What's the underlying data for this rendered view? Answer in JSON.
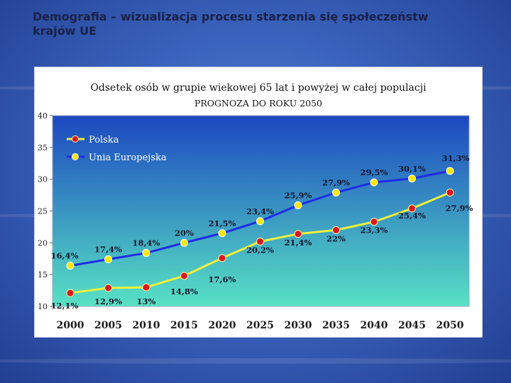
{
  "slide": {
    "title_line1": "Demografia – wizualizacja procesu starzenia się społeczeństw",
    "title_line2": "krajów UE"
  },
  "colors": {
    "polska_line": "#f2f03a",
    "polska_marker": "#e0141e",
    "ue_line": "#1f2ce6",
    "ue_marker": "#ffe800",
    "plot_top": "#1c47c0",
    "plot_bottom": "#58e2c4"
  },
  "chart_data": {
    "type": "line",
    "title": "Odsetek osób w grupie wiekowej 65 lat i powyżej w całej populacji",
    "subtitle": "PROGNOZA DO ROKU 2050",
    "x": [
      "2000",
      "2005",
      "2010",
      "2015",
      "2020",
      "2025",
      "2030",
      "2035",
      "2040",
      "2045",
      "2050"
    ],
    "ylim": [
      10,
      40
    ],
    "yticks": [
      "10",
      "15",
      "20",
      "25",
      "30",
      "35",
      "40"
    ],
    "grid": false,
    "legend_position": "top-left",
    "series": [
      {
        "name": "Polska",
        "values": [
          12.1,
          12.9,
          13.0,
          14.8,
          17.6,
          20.2,
          21.4,
          22.0,
          23.3,
          25.4,
          27.9
        ],
        "labels": [
          "12,1%",
          "12,9%",
          "13%",
          "14,8%",
          "17,6%",
          "20,2%",
          "21,4%",
          "22%",
          "23,3%",
          "25,4%",
          "27,9%"
        ]
      },
      {
        "name": "Unia Europejska",
        "values": [
          16.4,
          17.4,
          18.4,
          20.0,
          21.5,
          23.4,
          25.9,
          27.9,
          29.5,
          30.1,
          31.3
        ],
        "labels": [
          "16,4%",
          "17,4%",
          "18,4%",
          "20%",
          "21,5%",
          "23,4%",
          "25,9%",
          "27,9%",
          "29,5%",
          "30,1%",
          "31,3%"
        ]
      }
    ]
  }
}
